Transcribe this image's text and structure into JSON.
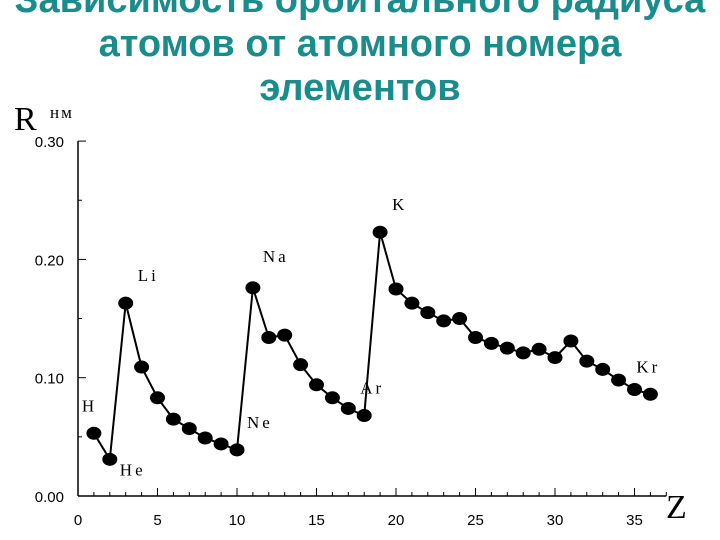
{
  "title": "Зависимость орбитального радиуса атомов от атомного номера элементов",
  "chart_data": {
    "type": "line",
    "title": "Зависимость орбитального радиуса атомов от атомного номера элементов",
    "xlabel": "Z",
    "ylabel": "R",
    "yunit": "нм",
    "xlim": [
      0,
      37
    ],
    "ylim": [
      0,
      0.3
    ],
    "x_ticks": [
      "0",
      "5",
      "10",
      "15",
      "20",
      "25",
      "30",
      "35"
    ],
    "y_ticks": [
      "0.00",
      "0.10",
      "0.20",
      "0.30"
    ],
    "x": [
      1,
      2,
      3,
      4,
      5,
      6,
      7,
      8,
      9,
      10,
      11,
      12,
      13,
      14,
      15,
      16,
      17,
      18,
      19,
      20,
      21,
      22,
      23,
      24,
      25,
      26,
      27,
      28,
      29,
      30,
      31,
      32,
      33,
      34,
      35,
      36
    ],
    "values": [
      0.053,
      0.031,
      0.163,
      0.109,
      0.083,
      0.065,
      0.057,
      0.049,
      0.044,
      0.039,
      0.176,
      0.134,
      0.136,
      0.111,
      0.094,
      0.083,
      0.074,
      0.068,
      0.223,
      0.175,
      0.163,
      0.155,
      0.148,
      0.15,
      0.134,
      0.129,
      0.125,
      0.121,
      0.124,
      0.117,
      0.131,
      0.114,
      0.107,
      0.098,
      0.09,
      0.086
    ],
    "annotations": [
      {
        "text": "H",
        "x": 1
      },
      {
        "text": "He",
        "x": 2
      },
      {
        "text": "Li",
        "x": 3
      },
      {
        "text": "Ne",
        "x": 10
      },
      {
        "text": "Na",
        "x": 11
      },
      {
        "text": "Ar",
        "x": 18
      },
      {
        "text": "K",
        "x": 19
      },
      {
        "text": "Kr",
        "x": 36
      }
    ],
    "grid": false
  }
}
